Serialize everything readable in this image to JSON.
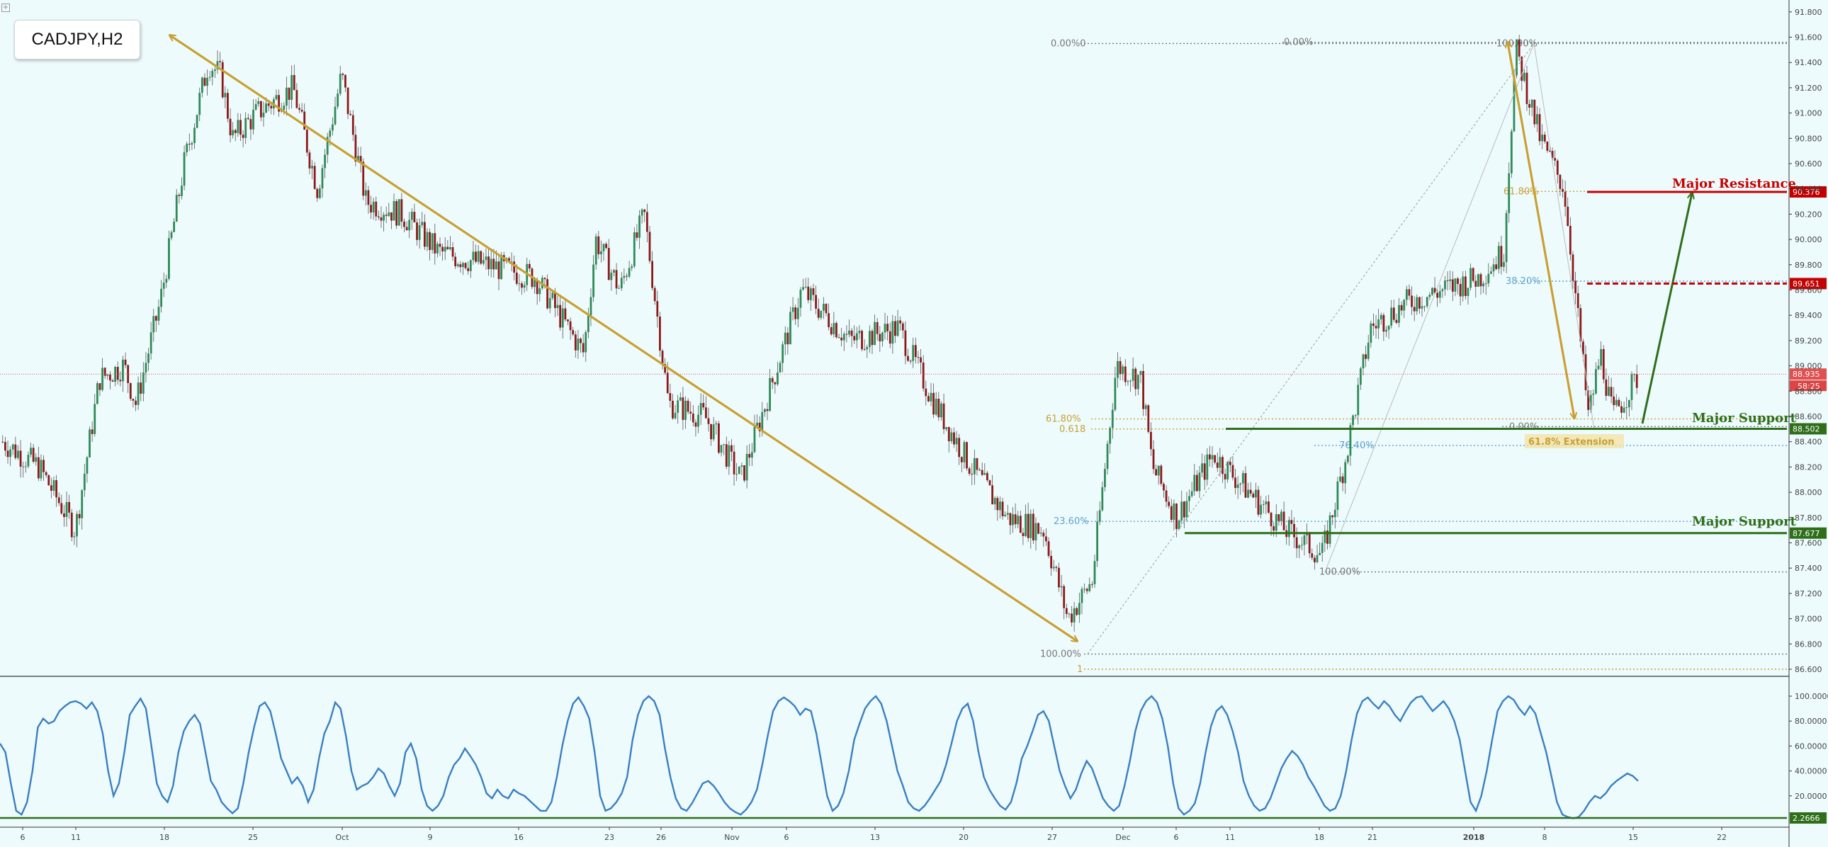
{
  "symbol": "CADJPY,H2",
  "colors": {
    "background": "#eefbfd",
    "bull": "#2e8b57",
    "bear": "#8b1a1a",
    "fib": "#c8a032",
    "fib_blue": "#5fa3d0",
    "support": "#2f6f1a",
    "resistance": "#c40000",
    "current_price": "#e05050",
    "oscillator": "#3a7fc1"
  },
  "chart_data": [
    {
      "type": "candlestick",
      "title": "CADJPY,H2",
      "x_tick_labels": [
        "6",
        "11",
        "18",
        "25",
        "Oct",
        "9",
        "16",
        "23",
        "26",
        "Nov",
        "6",
        "13",
        "20",
        "27",
        "Dec",
        "6",
        "11",
        "18",
        "21",
        "2018",
        "8",
        "15",
        "22"
      ],
      "y_tick_labels": [
        "91.800",
        "91.600",
        "91.400",
        "91.200",
        "91.000",
        "90.800",
        "90.600",
        "90.400",
        "90.200",
        "90.000",
        "89.800",
        "89.600",
        "89.400",
        "89.200",
        "89.000",
        "88.800",
        "88.600",
        "88.400",
        "88.200",
        "88.000",
        "87.800",
        "87.600",
        "87.400",
        "87.200",
        "87.000",
        "86.800",
        "86.600"
      ],
      "y_range": [
        86.5,
        91.85
      ],
      "price_path": [
        [
          0,
          88.4
        ],
        [
          3,
          88.2
        ],
        [
          6,
          87.7
        ],
        [
          8,
          88.9
        ],
        [
          10,
          89.0
        ],
        [
          11,
          88.7
        ],
        [
          13,
          89.5
        ],
        [
          15,
          90.6
        ],
        [
          17,
          91.4
        ],
        [
          18,
          91.3
        ],
        [
          19,
          90.8
        ],
        [
          21,
          91.0
        ],
        [
          24,
          91.2
        ],
        [
          26,
          90.4
        ],
        [
          28,
          91.3
        ],
        [
          30,
          90.3
        ],
        [
          33,
          90.2
        ],
        [
          36,
          89.9
        ],
        [
          40,
          89.8
        ],
        [
          44,
          89.7
        ],
        [
          48,
          89.1
        ],
        [
          49,
          90.0
        ],
        [
          51,
          89.6
        ],
        [
          53,
          90.2
        ],
        [
          55,
          88.7
        ],
        [
          58,
          88.6
        ],
        [
          61,
          88.1
        ],
        [
          63,
          88.7
        ],
        [
          66,
          89.6
        ],
        [
          70,
          89.2
        ],
        [
          74,
          89.3
        ],
        [
          77,
          88.7
        ],
        [
          80,
          88.2
        ],
        [
          83,
          87.8
        ],
        [
          86,
          87.7
        ],
        [
          88,
          87.0
        ],
        [
          90,
          87.3
        ],
        [
          92,
          89.0
        ],
        [
          94,
          88.9
        ],
        [
          95,
          88.2
        ],
        [
          97,
          87.8
        ],
        [
          100,
          88.3
        ],
        [
          103,
          88.0
        ],
        [
          106,
          87.7
        ],
        [
          109,
          87.5
        ],
        [
          111,
          88.3
        ],
        [
          113,
          89.3
        ],
        [
          116,
          89.5
        ],
        [
          119,
          89.6
        ],
        [
          122,
          89.7
        ],
        [
          124,
          89.9
        ],
        [
          125,
          91.5
        ],
        [
          127,
          90.8
        ],
        [
          129,
          90.4
        ],
        [
          131,
          88.6
        ],
        [
          132,
          89.1
        ],
        [
          133,
          88.6
        ],
        [
          135,
          88.9
        ]
      ],
      "levels": [
        {
          "label": "Major Resistance",
          "price": 90.376,
          "badge": "90.376",
          "style": "solid",
          "color": "#c40000"
        },
        {
          "price": 89.651,
          "badge": "89.651",
          "style": "dashed",
          "color": "#c40000"
        },
        {
          "label": "Major Support",
          "price": 88.502,
          "badge": "88.502",
          "style": "solid",
          "color": "#2f6f1a"
        },
        {
          "label": "Major Support",
          "price": 87.677,
          "badge": "87.677",
          "style": "solid",
          "color": "#2f6f1a"
        }
      ],
      "current_price": {
        "price": 88.935,
        "badge": "88.935",
        "countdown": "58:25"
      },
      "annotations": {
        "extension_label": "61.8% Extension",
        "fib_labels_left": [
          {
            "text": "0.00%0",
            "price": 91.55
          },
          {
            "text": "61.80%",
            "price": 88.58
          },
          {
            "text": "0.618",
            "price": 88.5
          },
          {
            "text": "100.00%",
            "price": 86.72
          },
          {
            "text": "1",
            "price": 86.6
          }
        ],
        "fib_labels_mid": [
          {
            "text": "0.00%",
            "price": 91.56
          },
          {
            "text": "100.00%",
            "price": 91.55
          },
          {
            "text": "61.80%",
            "price": 90.38
          },
          {
            "text": "38.20%",
            "price": 89.67
          },
          {
            "text": "76.40%",
            "price": 88.37
          },
          {
            "text": "0.00%",
            "price": 88.52
          },
          {
            "text": "100.00%",
            "price": 87.37
          },
          {
            "text": "23.60%",
            "price": 87.77
          }
        ]
      }
    },
    {
      "type": "line",
      "title": "Stochastic",
      "y_tick_labels": [
        "100.0000",
        "80.0000",
        "60.0000",
        "40.0000",
        "20.0000"
      ],
      "y_range": [
        0,
        100
      ],
      "current_value_badge": "2.2666",
      "baseline": 2.2666,
      "values": [
        62,
        55,
        30,
        8,
        5,
        15,
        40,
        75,
        82,
        78,
        80,
        88,
        92,
        95,
        96,
        94,
        90,
        95,
        88,
        70,
        40,
        20,
        30,
        55,
        85,
        92,
        98,
        90,
        60,
        30,
        20,
        15,
        28,
        55,
        72,
        80,
        85,
        78,
        55,
        32,
        25,
        15,
        10,
        6,
        10,
        30,
        55,
        75,
        92,
        95,
        88,
        70,
        50,
        40,
        30,
        35,
        28,
        15,
        25,
        50,
        70,
        80,
        95,
        90,
        68,
        40,
        25,
        28,
        30,
        35,
        42,
        38,
        28,
        20,
        30,
        55,
        62,
        50,
        25,
        12,
        8,
        12,
        20,
        35,
        45,
        50,
        58,
        52,
        45,
        35,
        22,
        18,
        25,
        20,
        18,
        25,
        22,
        20,
        16,
        12,
        8,
        8,
        15,
        35,
        60,
        80,
        94,
        99,
        92,
        82,
        55,
        20,
        8,
        10,
        15,
        22,
        35,
        65,
        85,
        96,
        100,
        96,
        85,
        58,
        35,
        18,
        10,
        8,
        14,
        22,
        30,
        32,
        28,
        22,
        15,
        10,
        7,
        5,
        9,
        15,
        25,
        45,
        68,
        88,
        96,
        99,
        96,
        92,
        85,
        90,
        88,
        70,
        45,
        20,
        8,
        12,
        22,
        40,
        65,
        78,
        90,
        96,
        100,
        94,
        80,
        60,
        40,
        28,
        15,
        10,
        8,
        12,
        18,
        25,
        32,
        45,
        62,
        80,
        90,
        94,
        80,
        55,
        35,
        25,
        18,
        12,
        9,
        15,
        30,
        50,
        60,
        72,
        85,
        88,
        80,
        60,
        40,
        28,
        18,
        25,
        38,
        48,
        42,
        30,
        18,
        12,
        8,
        12,
        28,
        48,
        72,
        88,
        96,
        100,
        95,
        82,
        60,
        30,
        10,
        5,
        8,
        14,
        30,
        55,
        76,
        88,
        92,
        85,
        72,
        55,
        32,
        20,
        12,
        8,
        10,
        18,
        30,
        42,
        50,
        56,
        52,
        45,
        35,
        28,
        20,
        12,
        8,
        10,
        20,
        40,
        65,
        86,
        96,
        99,
        94,
        90,
        96,
        92,
        85,
        80,
        88,
        95,
        99,
        100,
        94,
        88,
        92,
        96,
        90,
        80,
        65,
        40,
        15,
        8,
        20,
        40,
        65,
        88,
        96,
        100,
        97,
        90,
        85,
        92,
        86,
        70,
        55,
        35,
        15,
        5,
        3,
        2,
        3,
        8,
        15,
        20,
        18,
        22,
        28,
        32,
        35,
        38,
        36,
        32
      ]
    }
  ]
}
